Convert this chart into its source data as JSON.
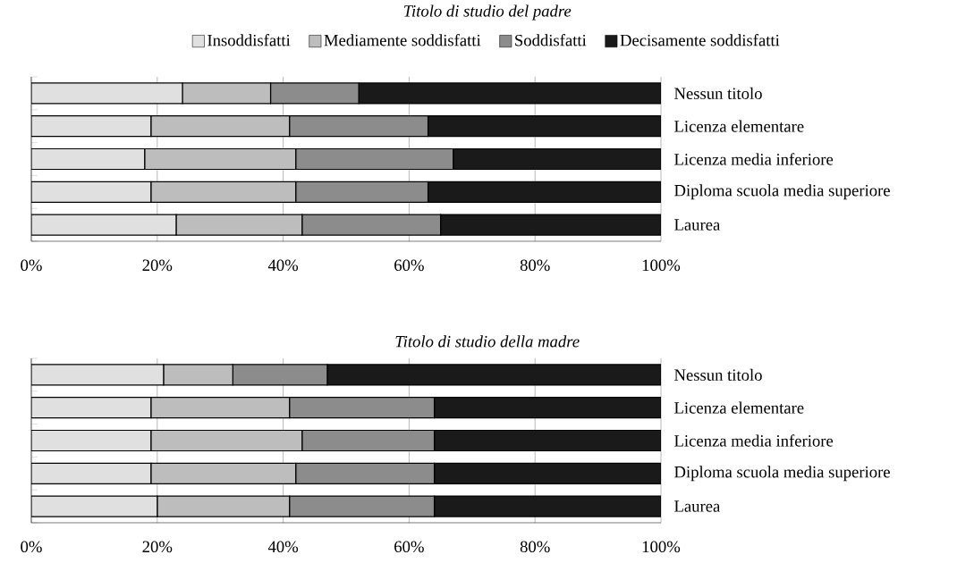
{
  "chart_data": [
    {
      "type": "bar",
      "orientation": "horizontal",
      "stacked": true,
      "title": "Titolo di studio del padre",
      "categories": [
        "Nessun titolo",
        "Licenza elementare",
        "Licenza media inferiore",
        "Diploma scuola media superiore",
        "Laurea"
      ],
      "series": [
        {
          "name": "Insoddisfatti",
          "color": "#e0e0e0",
          "values": [
            24,
            19,
            18,
            19,
            23
          ]
        },
        {
          "name": "Mediamente soddisfatti",
          "color": "#bdbdbd",
          "values": [
            14,
            22,
            24,
            23,
            20
          ]
        },
        {
          "name": "Soddisfatti",
          "color": "#8c8c8c",
          "values": [
            14,
            22,
            25,
            21,
            22
          ]
        },
        {
          "name": "Decisamente soddisfatti",
          "color": "#1a1a1a",
          "values": [
            48,
            37,
            33,
            37,
            35
          ]
        }
      ],
      "xlim": [
        0,
        100
      ],
      "xticks": [
        {
          "value": 0,
          "label": "0%"
        },
        {
          "value": 20,
          "label": "20%"
        },
        {
          "value": 40,
          "label": "40%"
        },
        {
          "value": 60,
          "label": "60%"
        },
        {
          "value": 80,
          "label": "80%"
        },
        {
          "value": 100,
          "label": "100%"
        }
      ],
      "grid": "x",
      "legend": "top"
    },
    {
      "type": "bar",
      "orientation": "horizontal",
      "stacked": true,
      "title": "Titolo di studio della madre",
      "categories": [
        "Nessun titolo",
        "Licenza elementare",
        "Licenza media inferiore",
        "Diploma scuola media superiore",
        "Laurea"
      ],
      "series": [
        {
          "color": "#e0e0e0",
          "values": [
            21,
            19,
            19,
            19,
            20
          ]
        },
        {
          "color": "#bdbdbd",
          "values": [
            11,
            22,
            24,
            23,
            21
          ]
        },
        {
          "color": "#8c8c8c",
          "values": [
            15,
            23,
            21,
            22,
            23
          ]
        },
        {
          "color": "#1a1a1a",
          "values": [
            53,
            36,
            36,
            36,
            36
          ]
        }
      ],
      "xlim": [
        0,
        100
      ],
      "xticks": [
        {
          "value": 0,
          "label": "0%"
        },
        {
          "value": 20,
          "label": "20%"
        },
        {
          "value": 40,
          "label": "40%"
        },
        {
          "value": 60,
          "label": "60%"
        },
        {
          "value": 80,
          "label": "80%"
        },
        {
          "value": 100,
          "label": "100%"
        }
      ],
      "grid": "x"
    }
  ]
}
